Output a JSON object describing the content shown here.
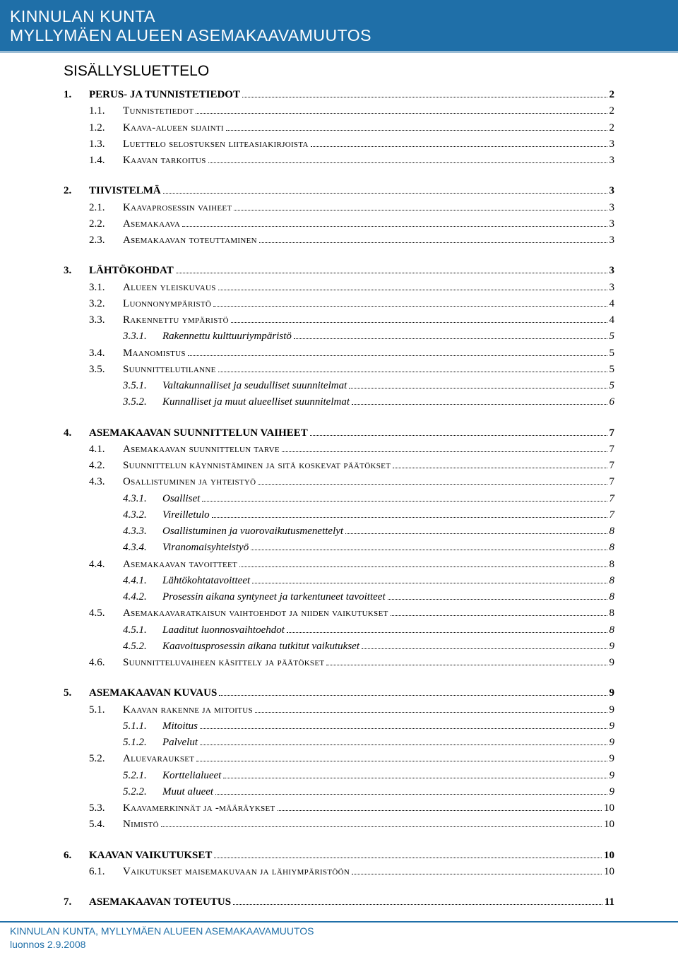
{
  "header": {
    "line1": "KINNULAN KUNTA",
    "line2": "MYLLYMÄEN ALUEEN ASEMAKAAVAMUUTOS"
  },
  "toc_title": "SISÄLLYSLUETTELO",
  "toc": [
    {
      "level": 1,
      "num": "1.",
      "label": "PERUS- JA TUNNISTETIEDOT",
      "page": "2"
    },
    {
      "level": 2,
      "num": "1.1.",
      "label": "Tunnistetiedot",
      "page": "2"
    },
    {
      "level": 2,
      "num": "1.2.",
      "label": "Kaava-alueen sijainti",
      "page": "2"
    },
    {
      "level": 2,
      "num": "1.3.",
      "label": "Luettelo selostuksen liiteasiakirjoista",
      "page": "3"
    },
    {
      "level": 2,
      "num": "1.4.",
      "label": "Kaavan tarkoitus",
      "page": "3"
    },
    {
      "level": 1,
      "num": "2.",
      "label": "TIIVISTELMÄ",
      "page": "3"
    },
    {
      "level": 2,
      "num": "2.1.",
      "label": "Kaavaprosessin vaiheet",
      "page": "3"
    },
    {
      "level": 2,
      "num": "2.2.",
      "label": "Asemakaava",
      "page": "3"
    },
    {
      "level": 2,
      "num": "2.3.",
      "label": "Asemakaavan toteuttaminen",
      "page": "3"
    },
    {
      "level": 1,
      "num": "3.",
      "label": "LÄHTÖKOHDAT",
      "page": "3"
    },
    {
      "level": 2,
      "num": "3.1.",
      "label": "Alueen yleiskuvaus",
      "page": "3"
    },
    {
      "level": 2,
      "num": "3.2.",
      "label": "Luonnonympäristö",
      "page": "4"
    },
    {
      "level": 2,
      "num": "3.3.",
      "label": "Rakennettu ympäristö",
      "page": "4"
    },
    {
      "level": 3,
      "num": "3.3.1.",
      "label": "Rakennettu kulttuuriympäristö",
      "page": "5"
    },
    {
      "level": 2,
      "num": "3.4.",
      "label": "Maanomistus",
      "page": "5"
    },
    {
      "level": 2,
      "num": "3.5.",
      "label": "Suunnittelutilanne",
      "page": "5"
    },
    {
      "level": 3,
      "num": "3.5.1.",
      "label": "Valtakunnalliset ja seudulliset suunnitelmat",
      "page": "5"
    },
    {
      "level": 3,
      "num": "3.5.2.",
      "label": "Kunnalliset ja muut alueelliset suunnitelmat",
      "page": "6"
    },
    {
      "level": 1,
      "num": "4.",
      "label": "ASEMAKAAVAN SUUNNITTELUN VAIHEET",
      "page": "7"
    },
    {
      "level": 2,
      "num": "4.1.",
      "label": "Asemakaavan suunnittelun tarve",
      "page": "7"
    },
    {
      "level": 2,
      "num": "4.2.",
      "label": "Suunnittelun käynnistäminen ja sitä koskevat päätökset",
      "page": "7"
    },
    {
      "level": 2,
      "num": "4.3.",
      "label": "Osallistuminen ja yhteistyö",
      "page": "7"
    },
    {
      "level": 3,
      "num": "4.3.1.",
      "label": "Osalliset",
      "page": "7"
    },
    {
      "level": 3,
      "num": "4.3.2.",
      "label": "Vireilletulo",
      "page": "7"
    },
    {
      "level": 3,
      "num": "4.3.3.",
      "label": "Osallistuminen ja vuorovaikutusmenettelyt",
      "page": "8"
    },
    {
      "level": 3,
      "num": "4.3.4.",
      "label": "Viranomaisyhteistyö",
      "page": "8"
    },
    {
      "level": 2,
      "num": "4.4.",
      "label": "Asemakaavan tavoitteet",
      "page": "8"
    },
    {
      "level": 3,
      "num": "4.4.1.",
      "label": "Lähtökohtatavoitteet",
      "page": "8"
    },
    {
      "level": 3,
      "num": "4.4.2.",
      "label": "Prosessin aikana syntyneet ja tarkentuneet tavoitteet",
      "page": "8"
    },
    {
      "level": 2,
      "num": "4.5.",
      "label": "Asemakaavaratkaisun vaihtoehdot ja niiden vaikutukset",
      "page": "8"
    },
    {
      "level": 3,
      "num": "4.5.1.",
      "label": "Laaditut luonnosvaihtoehdot",
      "page": "8"
    },
    {
      "level": 3,
      "num": "4.5.2.",
      "label": "Kaavoitusprosessin aikana tutkitut vaikutukset",
      "page": "9"
    },
    {
      "level": 2,
      "num": "4.6.",
      "label": "Suunnitteluvaiheen käsittely ja päätökset",
      "page": "9"
    },
    {
      "level": 1,
      "num": "5.",
      "label": "ASEMAKAAVAN KUVAUS",
      "page": "9"
    },
    {
      "level": 2,
      "num": "5.1.",
      "label": "Kaavan rakenne ja mitoitus",
      "page": "9"
    },
    {
      "level": 3,
      "num": "5.1.1.",
      "label": "Mitoitus",
      "page": "9"
    },
    {
      "level": 3,
      "num": "5.1.2.",
      "label": "Palvelut",
      "page": "9"
    },
    {
      "level": 2,
      "num": "5.2.",
      "label": "Aluevaraukset",
      "page": "9"
    },
    {
      "level": 3,
      "num": "5.2.1.",
      "label": "Korttelialueet",
      "page": "9"
    },
    {
      "level": 3,
      "num": "5.2.2.",
      "label": "Muut alueet",
      "page": "9"
    },
    {
      "level": 2,
      "num": "5.3.",
      "label": "Kaavamerkinnät ja -määräykset",
      "page": "10"
    },
    {
      "level": 2,
      "num": "5.4.",
      "label": "Nimistö",
      "page": "10"
    },
    {
      "level": 1,
      "num": "6.",
      "label": "KAAVAN VAIKUTUKSET",
      "page": "10"
    },
    {
      "level": 2,
      "num": "6.1.",
      "label": "Vaikutukset maisemakuvaan ja lähiympäristöön",
      "page": "10"
    },
    {
      "level": 1,
      "num": "7.",
      "label": "ASEMAKAAVAN TOTEUTUS",
      "page": "11"
    }
  ],
  "footer": {
    "line1": "KINNULAN KUNTA, MYLLYMÄEN ALUEEN ASEMAKAAVAMUUTOS",
    "line2": "luonnos 2.9.2008"
  },
  "colors": {
    "banner_bg": "#1f6fa8",
    "banner_underline": "#9bbcd4",
    "text": "#000000",
    "footer_text": "#1f6fa8"
  }
}
